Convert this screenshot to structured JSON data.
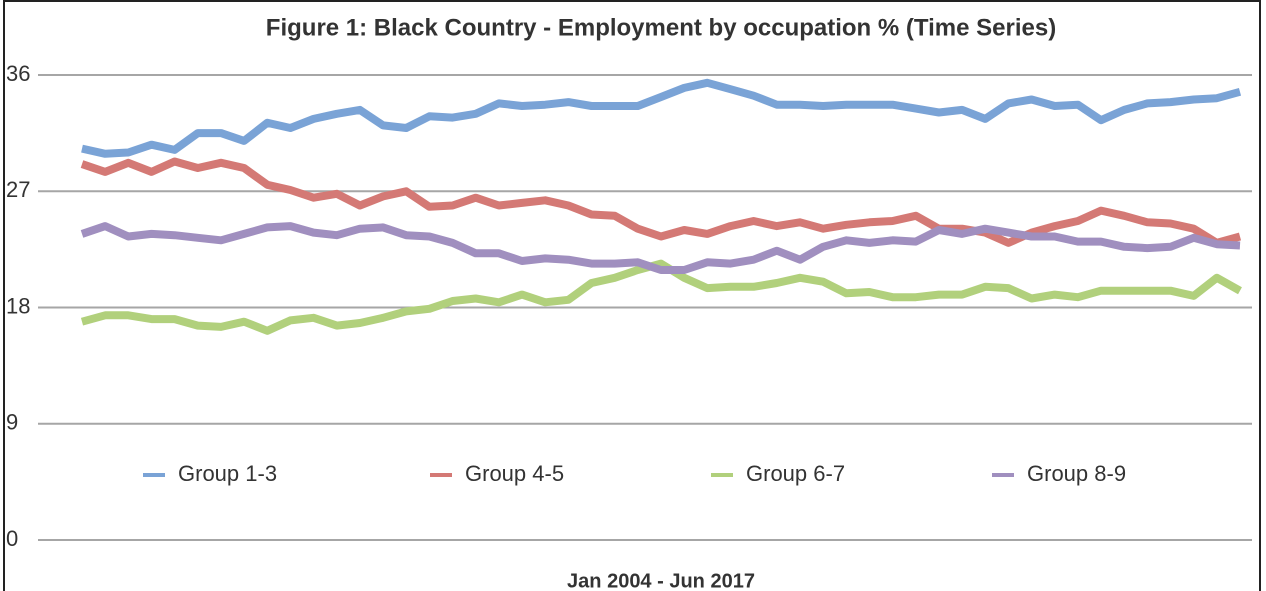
{
  "chart_data": {
    "type": "line",
    "title": "Figure 1: Black Country - Employment by occupation % (Time Series)",
    "xlabel": "Jan 2004 - Jun 2017",
    "ylim": [
      0,
      36
    ],
    "yticks": [
      0,
      9,
      18,
      27,
      36
    ],
    "grid": true,
    "legend": "bottom",
    "series": [
      {
        "name": "Group 1-3",
        "color": "#7aa3d6",
        "values": [
          30.3,
          29.9,
          30.0,
          30.6,
          30.2,
          31.5,
          31.5,
          30.9,
          32.3,
          31.9,
          32.6,
          33.0,
          33.3,
          32.1,
          31.9,
          32.8,
          32.7,
          33.0,
          33.8,
          33.6,
          33.7,
          33.9,
          33.6,
          33.6,
          33.6,
          34.3,
          35.0,
          35.4,
          34.9,
          34.4,
          33.7,
          33.7,
          33.6,
          33.7,
          33.7,
          33.7,
          33.4,
          33.1,
          33.3,
          32.6,
          33.8,
          34.1,
          33.6,
          33.7,
          32.5,
          33.3,
          33.8,
          33.9,
          34.1,
          34.2,
          34.7
        ]
      },
      {
        "name": "Group 4-5",
        "color": "#d47975",
        "values": [
          29.1,
          28.5,
          29.2,
          28.5,
          29.3,
          28.8,
          29.2,
          28.8,
          27.5,
          27.1,
          26.5,
          26.8,
          25.9,
          26.6,
          27.0,
          25.8,
          25.9,
          26.5,
          25.9,
          26.1,
          26.3,
          25.9,
          25.2,
          25.1,
          24.1,
          23.5,
          24.0,
          23.7,
          24.3,
          24.7,
          24.3,
          24.6,
          24.1,
          24.4,
          24.6,
          24.7,
          25.1,
          24.1,
          24.1,
          23.8,
          23.0,
          23.8,
          24.3,
          24.7,
          25.5,
          25.1,
          24.6,
          24.5,
          24.1,
          23.0,
          23.5
        ]
      },
      {
        "name": "Group 6-7",
        "color": "#b1d07c",
        "values": [
          16.9,
          17.4,
          17.4,
          17.1,
          17.1,
          16.6,
          16.5,
          16.9,
          16.2,
          17.0,
          17.2,
          16.6,
          16.8,
          17.2,
          17.7,
          17.9,
          18.5,
          18.7,
          18.4,
          19.0,
          18.4,
          18.6,
          19.9,
          20.3,
          20.9,
          21.4,
          20.3,
          19.5,
          19.6,
          19.6,
          19.9,
          20.3,
          20.0,
          19.1,
          19.2,
          18.8,
          18.8,
          19.0,
          19.0,
          19.6,
          19.5,
          18.7,
          19.0,
          18.8,
          19.3,
          19.3,
          19.3,
          19.3,
          18.9,
          20.3,
          19.3
        ]
      },
      {
        "name": "Group 8-9",
        "color": "#a08fbf",
        "values": [
          23.7,
          24.3,
          23.5,
          23.7,
          23.6,
          23.4,
          23.2,
          23.7,
          24.2,
          24.3,
          23.8,
          23.6,
          24.1,
          24.2,
          23.6,
          23.5,
          23.0,
          22.2,
          22.2,
          21.6,
          21.8,
          21.7,
          21.4,
          21.4,
          21.5,
          20.9,
          20.9,
          21.5,
          21.4,
          21.7,
          22.4,
          21.7,
          22.7,
          23.2,
          23.0,
          23.2,
          23.1,
          24.0,
          23.7,
          24.1,
          23.8,
          23.5,
          23.5,
          23.1,
          23.1,
          22.7,
          22.6,
          22.7,
          23.4,
          22.9,
          22.8
        ]
      }
    ]
  }
}
